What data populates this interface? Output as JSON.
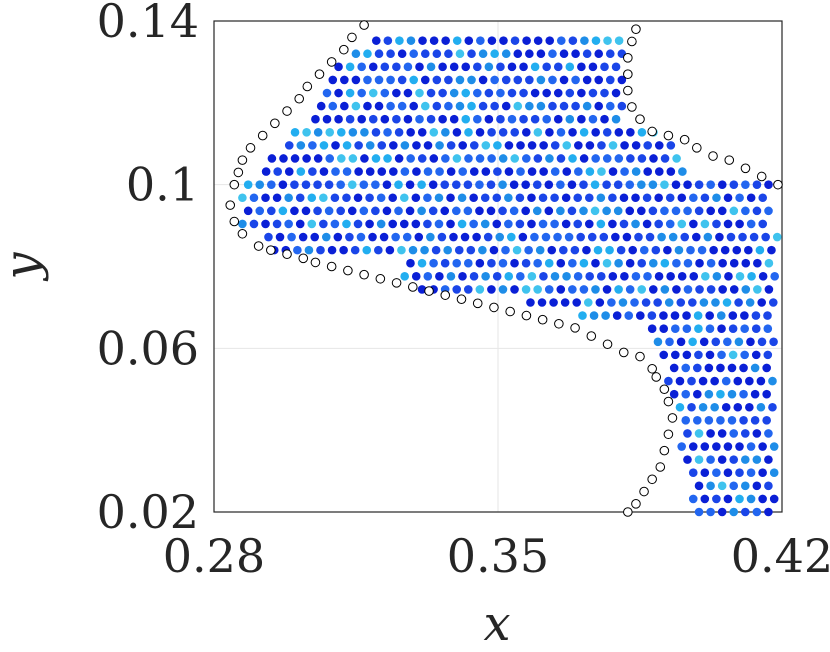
{
  "chart_data": {
    "type": "scatter",
    "title": "",
    "xlabel": "x",
    "ylabel": "y",
    "xlim": [
      0.28,
      0.42
    ],
    "ylim": [
      0.02,
      0.14
    ],
    "xticks": [
      "0.28",
      "0.35",
      "0.42"
    ],
    "yticks": [
      "0.02",
      "0.06",
      "0.1",
      "0.14"
    ],
    "grid": true,
    "grid_color": "#e6e6e6",
    "axis_color": "#262626",
    "boundary_marker": "open-circle",
    "interior_marker": "filled-circle",
    "color_palette": [
      "#0a1fd6",
      "#1a45e8",
      "#2266f0",
      "#1e8de8",
      "#22aef0",
      "#3fc3ee"
    ],
    "boundary_polygon": [
      [
        0.317,
        0.138
      ],
      [
        0.384,
        0.138
      ],
      [
        0.382,
        0.124
      ],
      [
        0.39,
        0.111
      ],
      [
        0.419,
        0.1
      ],
      [
        0.419,
        0.02
      ],
      [
        0.398,
        0.02
      ],
      [
        0.393,
        0.045
      ],
      [
        0.387,
        0.066
      ],
      [
        0.35,
        0.07
      ],
      [
        0.31,
        0.079
      ],
      [
        0.285,
        0.087
      ],
      [
        0.284,
        0.095
      ],
      [
        0.298,
        0.112
      ]
    ],
    "boundary_points": [
      [
        0.317,
        0.139
      ],
      [
        0.314,
        0.136
      ],
      [
        0.312,
        0.133
      ],
      [
        0.309,
        0.13
      ],
      [
        0.306,
        0.127
      ],
      [
        0.303,
        0.124
      ],
      [
        0.301,
        0.121
      ],
      [
        0.298,
        0.118
      ],
      [
        0.295,
        0.115
      ],
      [
        0.292,
        0.112
      ],
      [
        0.289,
        0.109
      ],
      [
        0.287,
        0.106
      ],
      [
        0.286,
        0.103
      ],
      [
        0.285,
        0.1
      ],
      [
        0.284,
        0.095
      ],
      [
        0.285,
        0.091
      ],
      [
        0.287,
        0.088
      ],
      [
        0.291,
        0.085
      ],
      [
        0.294,
        0.084
      ],
      [
        0.298,
        0.083
      ],
      [
        0.302,
        0.082
      ],
      [
        0.305,
        0.081
      ],
      [
        0.309,
        0.08
      ],
      [
        0.313,
        0.079
      ],
      [
        0.317,
        0.078
      ],
      [
        0.321,
        0.077
      ],
      [
        0.325,
        0.076
      ],
      [
        0.329,
        0.075
      ],
      [
        0.333,
        0.074
      ],
      [
        0.337,
        0.073
      ],
      [
        0.341,
        0.072
      ],
      [
        0.345,
        0.071
      ],
      [
        0.349,
        0.07
      ],
      [
        0.353,
        0.069
      ],
      [
        0.357,
        0.068
      ],
      [
        0.361,
        0.067
      ],
      [
        0.365,
        0.066
      ],
      [
        0.369,
        0.065
      ],
      [
        0.373,
        0.063
      ],
      [
        0.377,
        0.061
      ],
      [
        0.381,
        0.059
      ],
      [
        0.385,
        0.058
      ],
      [
        0.388,
        0.055
      ],
      [
        0.389,
        0.053
      ],
      [
        0.391,
        0.05
      ],
      [
        0.392,
        0.047
      ],
      [
        0.393,
        0.043
      ],
      [
        0.392,
        0.039
      ],
      [
        0.391,
        0.035
      ],
      [
        0.39,
        0.031
      ],
      [
        0.388,
        0.028
      ],
      [
        0.386,
        0.025
      ],
      [
        0.384,
        0.022
      ],
      [
        0.382,
        0.02
      ],
      [
        0.384,
        0.138
      ],
      [
        0.383,
        0.135
      ],
      [
        0.382,
        0.131
      ],
      [
        0.382,
        0.127
      ],
      [
        0.382,
        0.123
      ],
      [
        0.383,
        0.119
      ],
      [
        0.385,
        0.116
      ],
      [
        0.388,
        0.113
      ],
      [
        0.392,
        0.112
      ],
      [
        0.396,
        0.111
      ],
      [
        0.399,
        0.109
      ],
      [
        0.403,
        0.107
      ],
      [
        0.407,
        0.106
      ],
      [
        0.411,
        0.104
      ],
      [
        0.415,
        0.102
      ],
      [
        0.419,
        0.1
      ]
    ],
    "interior_regions": [
      {
        "y_min": 0.135,
        "y_max": 0.139,
        "x_min": 0.32,
        "x_max": 0.382
      },
      {
        "y_min": 0.113,
        "y_max": 0.134,
        "x_min": 0.305,
        "x_max": 0.381
      },
      {
        "y_min": 0.101,
        "y_max": 0.113,
        "x_min": 0.29,
        "x_max": 0.396
      },
      {
        "y_min": 0.09,
        "y_max": 0.101,
        "x_min": 0.287,
        "x_max": 0.417
      },
      {
        "y_min": 0.082,
        "y_max": 0.09,
        "x_min": 0.292,
        "x_max": 0.419
      },
      {
        "y_min": 0.074,
        "y_max": 0.082,
        "x_min": 0.327,
        "x_max": 0.419
      },
      {
        "y_min": 0.066,
        "y_max": 0.074,
        "x_min": 0.358,
        "x_max": 0.419
      },
      {
        "y_min": 0.058,
        "y_max": 0.066,
        "x_min": 0.388,
        "x_max": 0.419
      },
      {
        "y_min": 0.04,
        "y_max": 0.058,
        "x_min": 0.392,
        "x_max": 0.419
      },
      {
        "y_min": 0.02,
        "y_max": 0.04,
        "x_min": 0.391,
        "x_max": 0.419
      }
    ],
    "interior_spacing_x": 0.00285,
    "interior_spacing_y": 0.0032
  }
}
